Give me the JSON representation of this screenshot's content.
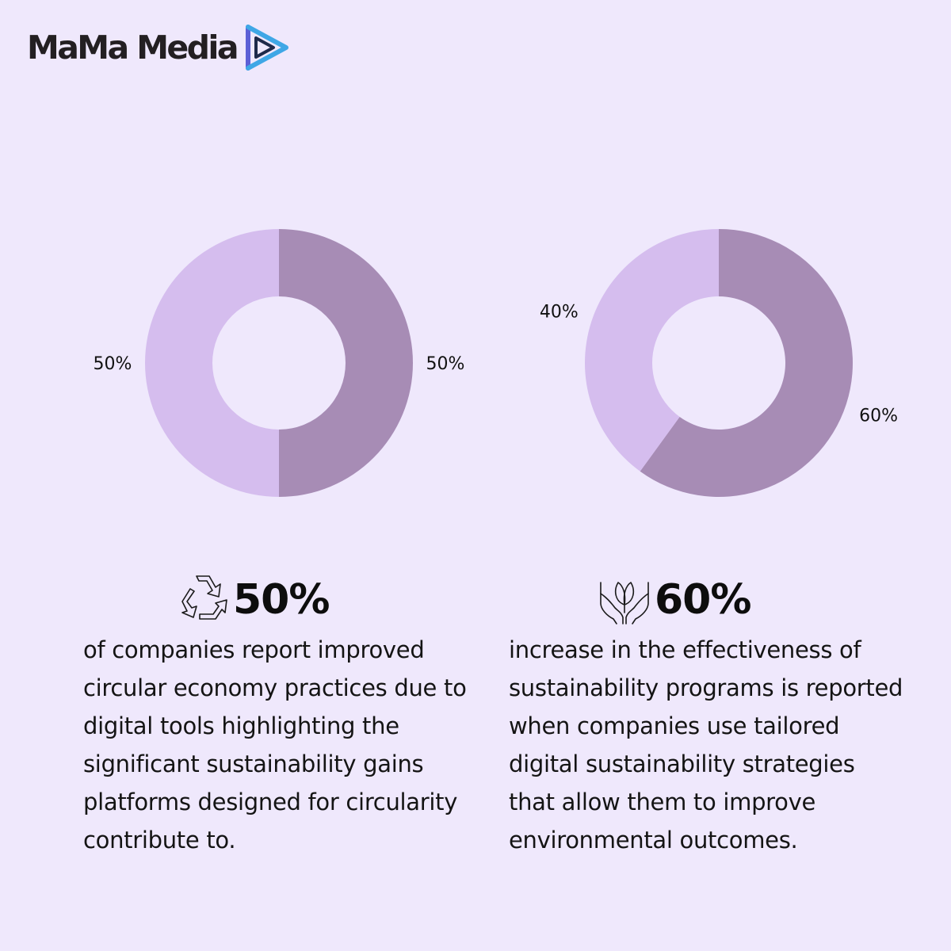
{
  "brand": {
    "name": "MaMa Media"
  },
  "colors": {
    "background": "#efe8fc",
    "slice_dark": "#a78cb5",
    "slice_light": "#d5bdee",
    "logo_blue": "#3fa7e6",
    "logo_indigo": "#5c5fd6"
  },
  "chart_data": [
    {
      "type": "pie",
      "variant": "donut",
      "categories": [
        "",
        ""
      ],
      "values": [
        50,
        50
      ],
      "labels": [
        "50%",
        "50%"
      ],
      "colors": [
        "#a78cb5",
        "#d5bdee"
      ]
    },
    {
      "type": "pie",
      "variant": "donut",
      "categories": [
        "",
        ""
      ],
      "values": [
        60,
        40
      ],
      "labels": [
        "60%",
        "40%"
      ],
      "colors": [
        "#a78cb5",
        "#d5bdee"
      ]
    }
  ],
  "stats": [
    {
      "icon": "recycle-icon",
      "value": "50%",
      "lines": [
        "of companies report improved",
        "circular economy practices due to",
        "digital tools highlighting the",
        "significant sustainability gains",
        "platforms designed for circularity",
        "contribute to."
      ]
    },
    {
      "icon": "hands-leaf-icon",
      "value": "60%",
      "lines": [
        "increase in the effectiveness of",
        "sustainability programs is reported",
        "when companies use tailored",
        "digital sustainability strategies",
        "that allow them to improve",
        "environmental outcomes."
      ]
    }
  ]
}
